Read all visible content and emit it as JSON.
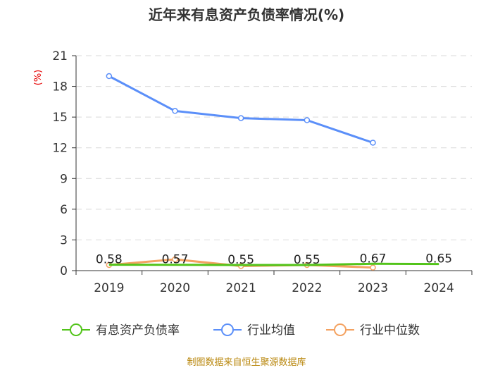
{
  "chart_data": {
    "type": "line",
    "title": "近年来有息资产负债率情况(%)",
    "ylabel": "(%)",
    "xlabel": "",
    "categories": [
      "2019",
      "2020",
      "2021",
      "2022",
      "2023",
      "2024"
    ],
    "ylim": [
      0,
      21
    ],
    "yticks": [
      0,
      3,
      6,
      9,
      12,
      15,
      18,
      21
    ],
    "grid": true,
    "legend_position": "bottom",
    "series": [
      {
        "name": "有息资产负债率",
        "color": "#52c41a",
        "values": [
          0.58,
          0.57,
          0.55,
          0.55,
          0.67,
          0.65
        ],
        "labels": [
          "0.58",
          "0.57",
          "0.55",
          "0.55",
          "0.67",
          "0.65"
        ]
      },
      {
        "name": "行业均值",
        "color": "#5b8ff9",
        "values": [
          19.0,
          15.6,
          14.9,
          14.7,
          12.5,
          null
        ]
      },
      {
        "name": "行业中位数",
        "color": "#f4a261",
        "values": [
          0.55,
          1.1,
          0.45,
          0.55,
          0.3,
          null
        ]
      }
    ],
    "source": "制图数据来自恒生聚源数据库"
  }
}
